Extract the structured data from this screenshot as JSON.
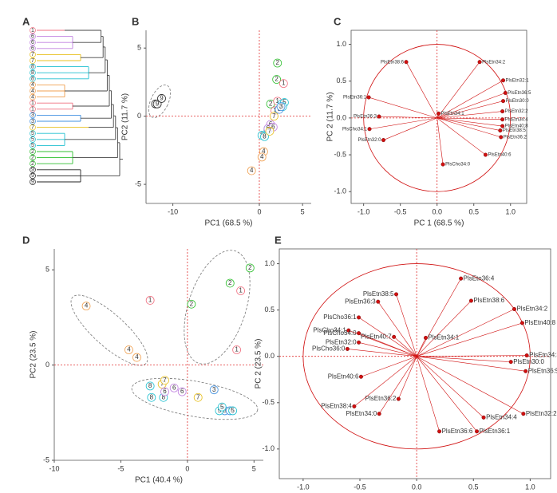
{
  "chart_data": [
    {
      "type": "dendrogram",
      "label": "A",
      "leaves": [
        "1",
        "6",
        "6",
        "6",
        "7",
        "7",
        "8",
        "8",
        "8",
        "4",
        "4",
        "4",
        "1",
        "1",
        "3",
        "3",
        "7",
        "5",
        "5",
        "5",
        "2",
        "2",
        "2",
        "9",
        "9",
        "9"
      ],
      "leaf_colors": [
        "#f07080",
        "#c080e0",
        "#c080e0",
        "#c080e0",
        "#e8c020",
        "#e8c020",
        "#20c0d0",
        "#20c0d0",
        "#20c0d0",
        "#f0a050",
        "#f0a050",
        "#f0a050",
        "#f07080",
        "#f07080",
        "#4090e0",
        "#4090e0",
        "#e8c020",
        "#20c0d0",
        "#20c0d0",
        "#20c0d0",
        "#30c030",
        "#30c030",
        "#30c030",
        "#222222",
        "#222222",
        "#222222"
      ]
    },
    {
      "type": "scatter",
      "label": "B",
      "xlabel": "PC1 (68.5 %)",
      "ylabel": "PC2 (11.7 %)",
      "x": [
        -12.0,
        -11.8,
        -11.3,
        2.1,
        2.0,
        1.3,
        2.8,
        2.1,
        1.8,
        2.6,
        2.9,
        2.7,
        0.3,
        0.6,
        1.0,
        1.3,
        1.0,
        1.6,
        1.7,
        1.2,
        2.3,
        2.5,
        0.5,
        0.3,
        -0.9
      ],
      "values": [
        0.9,
        0.9,
        1.3,
        3.9,
        2.7,
        0.9,
        2.4,
        1.1,
        0.4,
        0.9,
        1.0,
        0.7,
        -1.4,
        -1.5,
        -1.0,
        -0.6,
        -0.9,
        -0.8,
        0.0,
        -1.1,
        0.5,
        0.7,
        -2.6,
        -3.0,
        -4.0
      ],
      "point_labels": [
        "9",
        "9",
        "9",
        "2",
        "2",
        "2",
        "1",
        "1",
        "1",
        "5",
        "5",
        "5",
        "8",
        "8",
        "8",
        "6",
        "6",
        "6",
        "7",
        "7",
        "3",
        "3",
        "4",
        "4",
        "4"
      ],
      "point_colors": [
        "#222222",
        "#222222",
        "#222222",
        "#30c030",
        "#30c030",
        "#30c030",
        "#f07080",
        "#f07080",
        "#f07080",
        "#20c0d0",
        "#20c0d0",
        "#20c0d0",
        "#20c0d0",
        "#20c0d0",
        "#20c0d0",
        "#c080e0",
        "#c080e0",
        "#c080e0",
        "#e8c020",
        "#e8c020",
        "#4090e0",
        "#4090e0",
        "#f0a050",
        "#f0a050",
        "#f0a050"
      ],
      "xlim": [
        -13.1,
        6.0
      ],
      "ylim": [
        -6.4,
        6.3
      ],
      "xticks": [
        -10,
        0,
        5
      ],
      "yticks": [
        -5,
        0,
        5
      ]
    },
    {
      "type": "loading",
      "label": "C",
      "xlabel": "PC 1 (68.5 %)",
      "ylabel": "PC 2 (11.7 %)",
      "color": "#d01010",
      "variables": [
        "PlsEtn38:6",
        "PlsEtn34:2",
        "PlsEtn32:1",
        "PlsEtn36:5",
        "PlsEtn30:0",
        "PlsEtn32:2",
        "PlsEtn34:4",
        "PlsEtn40:8",
        "PlsEtn38:5",
        "PlsEtn36:2",
        "PlsEtn40:6",
        "PlsCho34:0",
        "PlsEtn34:1",
        "PlsEtn36:1",
        "PlsEtn36:3",
        "PlsCho34:1",
        "PlsEtn32:0"
      ],
      "x": [
        -0.42,
        0.58,
        0.9,
        0.93,
        0.9,
        0.89,
        0.89,
        0.89,
        0.86,
        0.87,
        0.66,
        0.08,
        0.02,
        -0.93,
        -0.79,
        -0.92,
        -0.73
      ],
      "values": [
        0.76,
        0.76,
        0.51,
        0.34,
        0.23,
        0.09,
        -0.02,
        -0.11,
        -0.17,
        -0.26,
        -0.5,
        -0.63,
        0.06,
        0.28,
        0.02,
        -0.15,
        -0.3
      ],
      "xlim": [
        -1.17,
        1.22
      ],
      "ylim": [
        -1.16,
        1.19
      ],
      "xticks": [
        {
          "value": -1,
          "label": "-1.0"
        },
        -0.5,
        {
          "value": 0,
          "label": "0.0"
        },
        0.5,
        {
          "value": 1,
          "label": "1.0"
        }
      ],
      "yticks": [
        {
          "value": -1,
          "label": "-1.0"
        },
        -0.5,
        {
          "value": 0,
          "label": "0.0"
        },
        0.5,
        {
          "value": 1,
          "label": "1.0"
        }
      ]
    },
    {
      "type": "scatter",
      "label": "D",
      "xlabel": "PC1 (40.4 %)",
      "ylabel": "PC2 (23.5 %)",
      "x": [
        -7.6,
        -4.4,
        -3.8,
        -2.8,
        4.0,
        3.7,
        4.7,
        3.2,
        0.3,
        -1.9,
        -1.7,
        0.8,
        -2.8,
        -2.7,
        -1.8,
        -1.7,
        -1.0,
        -0.4,
        2.0,
        2.8,
        3.2,
        2.4,
        3.4,
        2.6
      ],
      "values": [
        3.1,
        0.8,
        0.4,
        3.4,
        3.9,
        0.8,
        5.1,
        4.3,
        3.2,
        -1.0,
        -0.8,
        -1.7,
        -1.1,
        -1.7,
        -1.7,
        -1.4,
        -1.2,
        -1.4,
        -1.3,
        -2.4,
        -2.4,
        -2.4,
        -2.4,
        -2.2
      ],
      "point_labels": [
        "4",
        "4",
        "4",
        "1",
        "1",
        "1",
        "2",
        "2",
        "2",
        "7",
        "7",
        "7",
        "8",
        "8",
        "8",
        "6",
        "6",
        "6",
        "3",
        "3",
        "3",
        "5",
        "5",
        "5"
      ],
      "point_colors": [
        "#f0a050",
        "#f0a050",
        "#f0a050",
        "#f07080",
        "#f07080",
        "#f07080",
        "#30c030",
        "#30c030",
        "#30c030",
        "#e8c020",
        "#e8c020",
        "#e8c020",
        "#20c0d0",
        "#20c0d0",
        "#20c0d0",
        "#c080e0",
        "#c080e0",
        "#c080e0",
        "#4090e0",
        "#4090e0",
        "#4090e0",
        "#20c0d0",
        "#20c0d0",
        "#20c0d0"
      ],
      "xlim": [
        -10,
        5.7
      ],
      "ylim": [
        -5,
        6.1
      ],
      "xticks": [
        -10,
        -5,
        0,
        5
      ],
      "yticks": [
        -5,
        0,
        5
      ]
    },
    {
      "type": "loading",
      "label": "E",
      "xlabel": "PC 1 (40.4 %)",
      "ylabel": "PC 2 (23.5 %)",
      "color": "#d01010",
      "variables": [
        "PlsEtn36:4",
        "PlsEtn38:5",
        "PlsEtn38:6",
        "PlsEtn36:3",
        "PlsEtn34:2",
        "PlsEtn40:8",
        "PlsCho36:1",
        "PlsCho34:1",
        "PlsCho34:0",
        "PlsEtn40:7",
        "PlsEtn32:0",
        "PlsEtn34:1",
        "PlsCho36:0",
        "PlsEtn34:3",
        "PlsEtn30:0",
        "PlsEtn36:5",
        "PlsEtn40:6",
        "PlsEtn36:2",
        "PlsEtn38:4",
        "PlsEtn34:0",
        "PlsEtn32:2",
        "PlsEtn34:4",
        "PlsEtn36:6",
        "PlsEtn36:1"
      ],
      "x": [
        0.39,
        -0.18,
        0.48,
        -0.34,
        0.86,
        0.93,
        -0.51,
        -0.6,
        -0.51,
        -0.2,
        -0.51,
        0.08,
        -0.61,
        0.97,
        0.83,
        0.96,
        -0.49,
        -0.16,
        -0.55,
        -0.33,
        0.94,
        0.59,
        0.2,
        0.53
      ],
      "values": [
        0.84,
        0.67,
        0.6,
        0.59,
        0.51,
        0.36,
        0.42,
        0.28,
        0.25,
        0.21,
        0.15,
        0.2,
        0.08,
        0.01,
        -0.06,
        -0.16,
        -0.22,
        -0.46,
        -0.54,
        -0.62,
        -0.62,
        -0.66,
        -0.81,
        -0.81
      ],
      "xlim": [
        -1.21,
        1.18
      ],
      "ylim": [
        -1.32,
        1.16
      ],
      "xticks": [
        {
          "value": -1,
          "label": "-1.0"
        },
        -0.5,
        {
          "value": 0,
          "label": "0.0"
        },
        0.5,
        {
          "value": 1,
          "label": "1.0"
        }
      ],
      "yticks": [
        {
          "value": -1,
          "label": "-1.0"
        },
        -0.5,
        {
          "value": 0,
          "label": "0.0"
        },
        0.5,
        {
          "value": 1,
          "label": "1.0"
        }
      ]
    }
  ]
}
